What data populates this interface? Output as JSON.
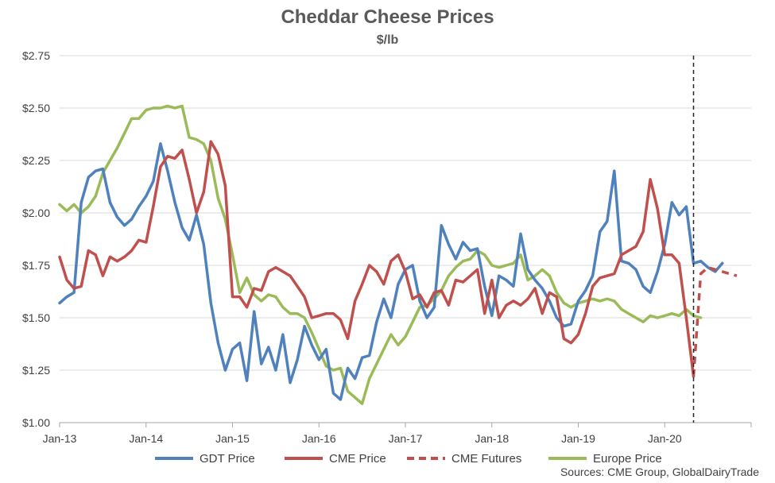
{
  "chart_data": {
    "type": "line",
    "title": "Cheddar Cheese Prices",
    "subtitle": "$/lb",
    "ylim": [
      1.0,
      2.75
    ],
    "yticks": [
      1.0,
      1.25,
      1.5,
      1.75,
      2.0,
      2.25,
      2.5,
      2.75
    ],
    "ytick_labels": [
      "$1.00",
      "$1.25",
      "$1.50",
      "$1.75",
      "$2.00",
      "$2.25",
      "$2.50",
      "$2.75"
    ],
    "xlim": [
      "2013-01",
      "2020-12"
    ],
    "xticks": [
      "2013-01",
      "2014-01",
      "2015-01",
      "2016-01",
      "2017-01",
      "2018-01",
      "2019-01",
      "2020-01"
    ],
    "xtick_labels": [
      "Jan-13",
      "Jan-14",
      "Jan-15",
      "Jan-16",
      "Jan-17",
      "Jan-18",
      "Jan-19",
      "Jan-20"
    ],
    "grid": "horizontal",
    "legend_position": "bottom",
    "vertical_marker": "2020-05",
    "series": [
      {
        "name": "GDT Price",
        "color": "#4F81BD",
        "style": "solid",
        "points": [
          [
            "2013-01",
            1.57
          ],
          [
            "2013-02",
            1.6
          ],
          [
            "2013-03",
            1.62
          ],
          [
            "2013-04",
            2.05
          ],
          [
            "2013-05",
            2.17
          ],
          [
            "2013-06",
            2.2
          ],
          [
            "2013-07",
            2.21
          ],
          [
            "2013-08",
            2.05
          ],
          [
            "2013-09",
            1.98
          ],
          [
            "2013-10",
            1.94
          ],
          [
            "2013-11",
            1.97
          ],
          [
            "2013-12",
            2.03
          ],
          [
            "2014-01",
            2.08
          ],
          [
            "2014-02",
            2.15
          ],
          [
            "2014-03",
            2.33
          ],
          [
            "2014-04",
            2.2
          ],
          [
            "2014-05",
            2.05
          ],
          [
            "2014-06",
            1.93
          ],
          [
            "2014-07",
            1.87
          ],
          [
            "2014-08",
            1.99
          ],
          [
            "2014-09",
            1.85
          ],
          [
            "2014-10",
            1.57
          ],
          [
            "2014-11",
            1.38
          ],
          [
            "2014-12",
            1.25
          ],
          [
            "2015-01",
            1.35
          ],
          [
            "2015-02",
            1.38
          ],
          [
            "2015-03",
            1.2
          ],
          [
            "2015-04",
            1.53
          ],
          [
            "2015-05",
            1.28
          ],
          [
            "2015-06",
            1.36
          ],
          [
            "2015-07",
            1.25
          ],
          [
            "2015-08",
            1.42
          ],
          [
            "2015-09",
            1.19
          ],
          [
            "2015-10",
            1.3
          ],
          [
            "2015-11",
            1.46
          ],
          [
            "2015-12",
            1.37
          ],
          [
            "2016-01",
            1.3
          ],
          [
            "2016-02",
            1.35
          ],
          [
            "2016-03",
            1.14
          ],
          [
            "2016-04",
            1.11
          ],
          [
            "2016-05",
            1.26
          ],
          [
            "2016-06",
            1.21
          ],
          [
            "2016-07",
            1.31
          ],
          [
            "2016-08",
            1.32
          ],
          [
            "2016-09",
            1.48
          ],
          [
            "2016-10",
            1.59
          ],
          [
            "2016-11",
            1.5
          ],
          [
            "2016-12",
            1.66
          ],
          [
            "2017-01",
            1.73
          ],
          [
            "2017-02",
            1.75
          ],
          [
            "2017-03",
            1.58
          ],
          [
            "2017-04",
            1.5
          ],
          [
            "2017-05",
            1.55
          ],
          [
            "2017-06",
            1.94
          ],
          [
            "2017-07",
            1.85
          ],
          [
            "2017-08",
            1.78
          ],
          [
            "2017-09",
            1.86
          ],
          [
            "2017-10",
            1.82
          ],
          [
            "2017-11",
            1.83
          ],
          [
            "2017-12",
            1.65
          ],
          [
            "2018-01",
            1.51
          ],
          [
            "2018-02",
            1.7
          ],
          [
            "2018-03",
            1.68
          ],
          [
            "2018-04",
            1.65
          ],
          [
            "2018-05",
            1.9
          ],
          [
            "2018-06",
            1.73
          ],
          [
            "2018-07",
            1.68
          ],
          [
            "2018-08",
            1.64
          ],
          [
            "2018-09",
            1.58
          ],
          [
            "2018-10",
            1.5
          ],
          [
            "2018-11",
            1.46
          ],
          [
            "2018-12",
            1.47
          ],
          [
            "2019-01",
            1.58
          ],
          [
            "2019-02",
            1.63
          ],
          [
            "2019-03",
            1.7
          ],
          [
            "2019-04",
            1.91
          ],
          [
            "2019-05",
            1.96
          ],
          [
            "2019-06",
            2.2
          ],
          [
            "2019-07",
            1.77
          ],
          [
            "2019-08",
            1.76
          ],
          [
            "2019-09",
            1.73
          ],
          [
            "2019-10",
            1.65
          ],
          [
            "2019-11",
            1.62
          ],
          [
            "2019-12",
            1.72
          ],
          [
            "2020-01",
            1.85
          ],
          [
            "2020-02",
            2.05
          ],
          [
            "2020-03",
            1.99
          ],
          [
            "2020-04",
            2.03
          ],
          [
            "2020-05",
            1.76
          ],
          [
            "2020-06",
            1.77
          ],
          [
            "2020-07",
            1.74
          ],
          [
            "2020-08",
            1.72
          ],
          [
            "2020-09",
            1.76
          ]
        ]
      },
      {
        "name": "CME Price",
        "color": "#C0504D",
        "style": "solid",
        "points": [
          [
            "2013-01",
            1.79
          ],
          [
            "2013-02",
            1.68
          ],
          [
            "2013-03",
            1.64
          ],
          [
            "2013-04",
            1.65
          ],
          [
            "2013-05",
            1.82
          ],
          [
            "2013-06",
            1.8
          ],
          [
            "2013-07",
            1.7
          ],
          [
            "2013-08",
            1.79
          ],
          [
            "2013-09",
            1.77
          ],
          [
            "2013-10",
            1.79
          ],
          [
            "2013-11",
            1.82
          ],
          [
            "2013-12",
            1.87
          ],
          [
            "2014-01",
            1.86
          ],
          [
            "2014-02",
            2.03
          ],
          [
            "2014-03",
            2.22
          ],
          [
            "2014-04",
            2.27
          ],
          [
            "2014-05",
            2.26
          ],
          [
            "2014-06",
            2.3
          ],
          [
            "2014-07",
            2.16
          ],
          [
            "2014-08",
            2.0
          ],
          [
            "2014-09",
            2.1
          ],
          [
            "2014-10",
            2.34
          ],
          [
            "2014-11",
            2.28
          ],
          [
            "2014-12",
            2.13
          ],
          [
            "2015-01",
            1.6
          ],
          [
            "2015-02",
            1.6
          ],
          [
            "2015-03",
            1.55
          ],
          [
            "2015-04",
            1.64
          ],
          [
            "2015-05",
            1.63
          ],
          [
            "2015-06",
            1.72
          ],
          [
            "2015-07",
            1.74
          ],
          [
            "2015-08",
            1.72
          ],
          [
            "2015-09",
            1.7
          ],
          [
            "2015-10",
            1.65
          ],
          [
            "2015-11",
            1.6
          ],
          [
            "2015-12",
            1.5
          ],
          [
            "2016-01",
            1.51
          ],
          [
            "2016-02",
            1.52
          ],
          [
            "2016-03",
            1.52
          ],
          [
            "2016-04",
            1.49
          ],
          [
            "2016-05",
            1.4
          ],
          [
            "2016-06",
            1.58
          ],
          [
            "2016-07",
            1.66
          ],
          [
            "2016-08",
            1.75
          ],
          [
            "2016-09",
            1.72
          ],
          [
            "2016-10",
            1.66
          ],
          [
            "2016-11",
            1.77
          ],
          [
            "2016-12",
            1.8
          ],
          [
            "2017-01",
            1.72
          ],
          [
            "2017-02",
            1.59
          ],
          [
            "2017-03",
            1.61
          ],
          [
            "2017-04",
            1.55
          ],
          [
            "2017-05",
            1.62
          ],
          [
            "2017-06",
            1.63
          ],
          [
            "2017-07",
            1.56
          ],
          [
            "2017-08",
            1.68
          ],
          [
            "2017-09",
            1.67
          ],
          [
            "2017-10",
            1.7
          ],
          [
            "2017-11",
            1.73
          ],
          [
            "2017-12",
            1.52
          ],
          [
            "2018-01",
            1.68
          ],
          [
            "2018-02",
            1.5
          ],
          [
            "2018-03",
            1.56
          ],
          [
            "2018-04",
            1.58
          ],
          [
            "2018-05",
            1.56
          ],
          [
            "2018-06",
            1.59
          ],
          [
            "2018-07",
            1.64
          ],
          [
            "2018-08",
            1.52
          ],
          [
            "2018-09",
            1.62
          ],
          [
            "2018-10",
            1.6
          ],
          [
            "2018-11",
            1.4
          ],
          [
            "2018-12",
            1.38
          ],
          [
            "2019-01",
            1.42
          ],
          [
            "2019-02",
            1.52
          ],
          [
            "2019-03",
            1.65
          ],
          [
            "2019-04",
            1.69
          ],
          [
            "2019-05",
            1.7
          ],
          [
            "2019-06",
            1.71
          ],
          [
            "2019-07",
            1.8
          ],
          [
            "2019-08",
            1.82
          ],
          [
            "2019-09",
            1.84
          ],
          [
            "2019-10",
            1.91
          ],
          [
            "2019-11",
            2.16
          ],
          [
            "2019-12",
            2.02
          ],
          [
            "2020-01",
            1.8
          ],
          [
            "2020-02",
            1.8
          ],
          [
            "2020-03",
            1.76
          ],
          [
            "2020-04",
            1.5
          ],
          [
            "2020-05",
            1.22
          ]
        ]
      },
      {
        "name": "CME Futures",
        "color": "#C0504D",
        "style": "dashed",
        "points": [
          [
            "2020-05",
            1.22
          ],
          [
            "2020-06",
            1.71
          ],
          [
            "2020-07",
            1.74
          ],
          [
            "2020-08",
            1.73
          ],
          [
            "2020-09",
            1.72
          ],
          [
            "2020-10",
            1.71
          ],
          [
            "2020-11",
            1.7
          ]
        ]
      },
      {
        "name": "Europe Price",
        "color": "#9BBB59",
        "style": "solid",
        "points": [
          [
            "2013-01",
            2.04
          ],
          [
            "2013-02",
            2.01
          ],
          [
            "2013-03",
            2.04
          ],
          [
            "2013-04",
            2.0
          ],
          [
            "2013-05",
            2.03
          ],
          [
            "2013-06",
            2.08
          ],
          [
            "2013-07",
            2.19
          ],
          [
            "2013-08",
            2.25
          ],
          [
            "2013-09",
            2.31
          ],
          [
            "2013-10",
            2.38
          ],
          [
            "2013-11",
            2.45
          ],
          [
            "2013-12",
            2.45
          ],
          [
            "2014-01",
            2.49
          ],
          [
            "2014-02",
            2.5
          ],
          [
            "2014-03",
            2.5
          ],
          [
            "2014-04",
            2.51
          ],
          [
            "2014-05",
            2.5
          ],
          [
            "2014-06",
            2.51
          ],
          [
            "2014-07",
            2.36
          ],
          [
            "2014-08",
            2.35
          ],
          [
            "2014-09",
            2.33
          ],
          [
            "2014-10",
            2.25
          ],
          [
            "2014-11",
            2.07
          ],
          [
            "2014-12",
            1.97
          ],
          [
            "2015-01",
            1.8
          ],
          [
            "2015-02",
            1.62
          ],
          [
            "2015-03",
            1.69
          ],
          [
            "2015-04",
            1.61
          ],
          [
            "2015-05",
            1.58
          ],
          [
            "2015-06",
            1.61
          ],
          [
            "2015-07",
            1.6
          ],
          [
            "2015-08",
            1.55
          ],
          [
            "2015-09",
            1.52
          ],
          [
            "2015-10",
            1.52
          ],
          [
            "2015-11",
            1.5
          ],
          [
            "2015-12",
            1.43
          ],
          [
            "2016-01",
            1.35
          ],
          [
            "2016-02",
            1.27
          ],
          [
            "2016-03",
            1.25
          ],
          [
            "2016-04",
            1.26
          ],
          [
            "2016-05",
            1.15
          ],
          [
            "2016-06",
            1.12
          ],
          [
            "2016-07",
            1.09
          ],
          [
            "2016-08",
            1.21
          ],
          [
            "2016-09",
            1.28
          ],
          [
            "2016-10",
            1.35
          ],
          [
            "2016-11",
            1.42
          ],
          [
            "2016-12",
            1.37
          ],
          [
            "2017-01",
            1.41
          ],
          [
            "2017-02",
            1.48
          ],
          [
            "2017-03",
            1.55
          ],
          [
            "2017-04",
            1.56
          ],
          [
            "2017-05",
            1.59
          ],
          [
            "2017-06",
            1.63
          ],
          [
            "2017-07",
            1.7
          ],
          [
            "2017-08",
            1.74
          ],
          [
            "2017-09",
            1.77
          ],
          [
            "2017-10",
            1.78
          ],
          [
            "2017-11",
            1.82
          ],
          [
            "2017-12",
            1.8
          ],
          [
            "2018-01",
            1.75
          ],
          [
            "2018-02",
            1.74
          ],
          [
            "2018-03",
            1.75
          ],
          [
            "2018-04",
            1.76
          ],
          [
            "2018-05",
            1.8
          ],
          [
            "2018-06",
            1.68
          ],
          [
            "2018-07",
            1.7
          ],
          [
            "2018-08",
            1.73
          ],
          [
            "2018-09",
            1.7
          ],
          [
            "2018-10",
            1.62
          ],
          [
            "2018-11",
            1.57
          ],
          [
            "2018-12",
            1.55
          ],
          [
            "2019-01",
            1.57
          ],
          [
            "2019-02",
            1.58
          ],
          [
            "2019-03",
            1.59
          ],
          [
            "2019-04",
            1.58
          ],
          [
            "2019-05",
            1.59
          ],
          [
            "2019-06",
            1.58
          ],
          [
            "2019-07",
            1.54
          ],
          [
            "2019-08",
            1.52
          ],
          [
            "2019-09",
            1.5
          ],
          [
            "2019-10",
            1.48
          ],
          [
            "2019-11",
            1.51
          ],
          [
            "2019-12",
            1.5
          ],
          [
            "2020-01",
            1.51
          ],
          [
            "2020-02",
            1.52
          ],
          [
            "2020-03",
            1.51
          ],
          [
            "2020-04",
            1.54
          ],
          [
            "2020-05",
            1.51
          ],
          [
            "2020-06",
            1.5
          ]
        ]
      }
    ]
  },
  "sources": "Sources:  CME Group, GlobalDairyTrade"
}
